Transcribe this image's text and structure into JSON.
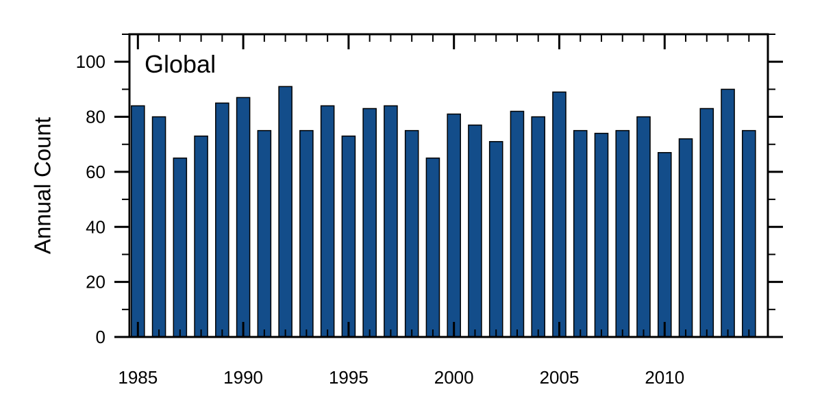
{
  "chart_data": {
    "type": "bar",
    "title": "Global",
    "xlabel": "",
    "ylabel": "Annual Count",
    "x": [
      1985,
      1986,
      1987,
      1988,
      1989,
      1990,
      1991,
      1992,
      1993,
      1994,
      1995,
      1996,
      1997,
      1998,
      1999,
      2000,
      2001,
      2002,
      2003,
      2004,
      2005,
      2006,
      2007,
      2008,
      2009,
      2010,
      2011,
      2012,
      2013,
      2014
    ],
    "values": [
      84,
      80,
      65,
      73,
      85,
      87,
      75,
      91,
      75,
      84,
      73,
      83,
      84,
      75,
      65,
      81,
      77,
      71,
      82,
      80,
      89,
      75,
      74,
      75,
      80,
      67,
      72,
      83,
      90,
      75
    ],
    "xlim": [
      1984.6,
      2014.9
    ],
    "ylim": [
      0,
      110
    ],
    "xticks": [
      1985,
      1990,
      1995,
      2000,
      2005,
      2010
    ],
    "xtick_labels": [
      "1985",
      "1990",
      "1995",
      "2000",
      "2005",
      "2010"
    ],
    "yticks": [
      0,
      20,
      40,
      60,
      80,
      100
    ],
    "ytick_labels": [
      "0",
      "20",
      "40",
      "60",
      "80",
      "100"
    ],
    "bar_color": "#134d8a",
    "bar_edge_color": "#000000",
    "grid": false,
    "legend": "none"
  }
}
